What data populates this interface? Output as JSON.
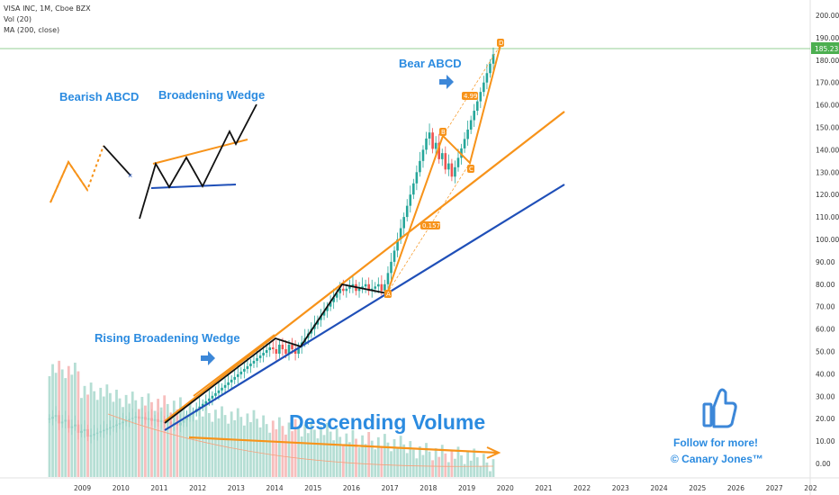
{
  "header": {
    "symbol": "VISA INC, 1M, Cboe BZX",
    "vol": "Vol (20)",
    "ma": "MA (200, close)"
  },
  "annotations": {
    "bearish_abcd": "Bearish ABCD",
    "broadening_wedge": "Broadening Wedge",
    "bear_abcd": "Bear ABCD",
    "rising_broadening_wedge": "Rising Broadening Wedge",
    "descending_volume": "Descending Volume",
    "follow": "Follow for more!",
    "author": "© Canary Jones™"
  },
  "price_label": "185.23",
  "pattern_labels": {
    "A": "A",
    "B": "B",
    "C": "C",
    "D": "D",
    "ratio_1": "0.157",
    "ratio_2": "4.99"
  },
  "colors": {
    "bull": "#26a69a",
    "bear": "#ef5350",
    "orange": "#f7931a",
    "blue": "#1f4fb8",
    "annotation": "#2b8be0",
    "price_line": "#4caf50"
  },
  "chart_data": {
    "type": "candlestick",
    "x_ticks": [
      "2009",
      "2010",
      "2011",
      "2012",
      "2013",
      "2014",
      "2015",
      "2016",
      "2017",
      "2018",
      "2019",
      "2020",
      "2021",
      "2022",
      "2023",
      "2024",
      "2025",
      "2026",
      "2027",
      "202"
    ],
    "y_ticks": [
      "0.00",
      "10.00",
      "20.00",
      "30.00",
      "40.00",
      "50.00",
      "60.00",
      "70.00",
      "80.00",
      "90.00",
      "100.00",
      "110.00",
      "120.00",
      "130.00",
      "140.00",
      "150.00",
      "160.00",
      "170.00",
      "180.00",
      "190.00",
      "200.00"
    ],
    "y_range": [
      0,
      200
    ],
    "last_price": 185.23,
    "series": [
      {
        "name": "Vol (20)",
        "type": "bar"
      },
      {
        "name": "MA (200, close)",
        "type": "line"
      }
    ]
  }
}
